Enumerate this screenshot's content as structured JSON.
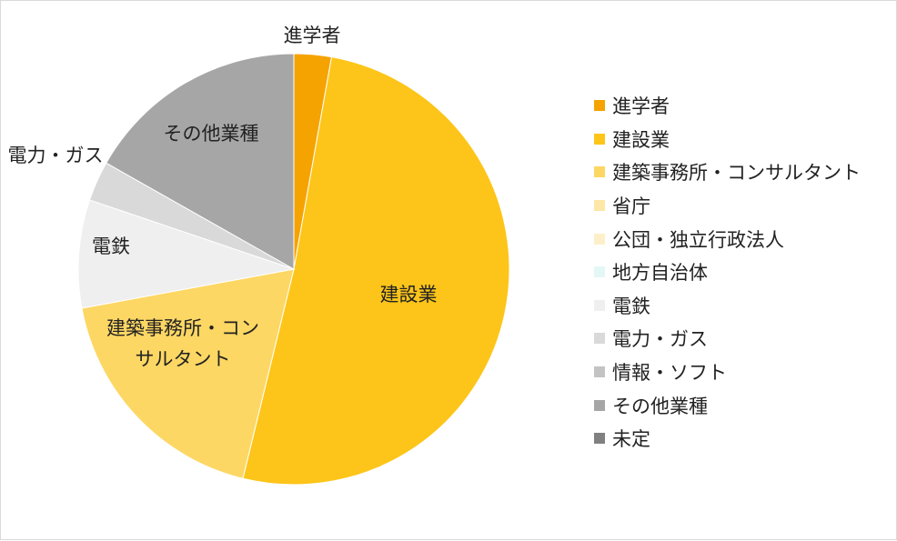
{
  "chart_data": {
    "type": "pie",
    "categories": [
      "進学者",
      "建設業",
      "建築事務所・コンサルタント",
      "省庁",
      "公団・独立行政法人",
      "地方自治体",
      "電鉄",
      "電力・ガス",
      "情報・ソフト",
      "その他業種",
      "未定"
    ],
    "values": [
      2.8,
      51.0,
      18.3,
      0,
      0,
      0,
      8.1,
      3.0,
      0,
      16.8,
      0
    ],
    "colors": [
      "#f5a300",
      "#fdc519",
      "#fdd764",
      "#fde7a6",
      "#fdf0c8",
      "#e4f7f7",
      "#efefef",
      "#d9d9d9",
      "#c3c3c3",
      "#a6a6a6",
      "#808080"
    ],
    "slice_labels": {
      "進学者": [
        "進学者"
      ],
      "建設業": [
        "建設業"
      ],
      "建築事務所・コンサルタント": [
        "建築事務所・コン",
        "サルタント"
      ],
      "電鉄": [
        "電鉄"
      ],
      "電力・ガス": [
        "電力・ガス"
      ],
      "その他業種": [
        "その他業種"
      ]
    },
    "legend_position": "right",
    "title": ""
  }
}
